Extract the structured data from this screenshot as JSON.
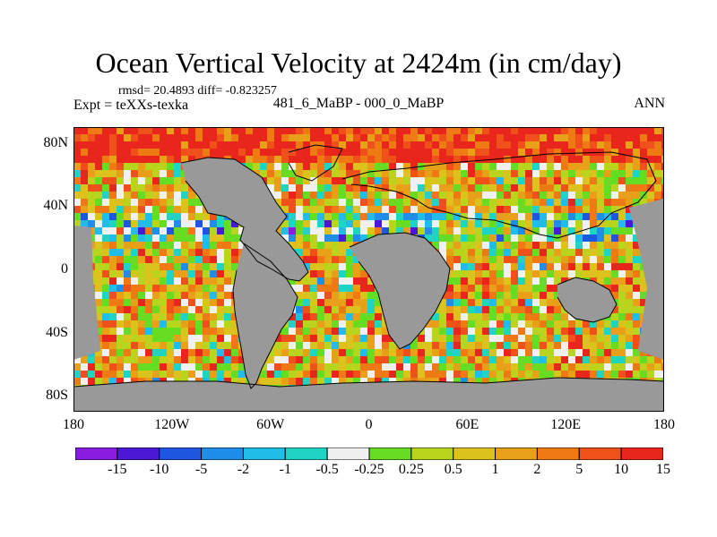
{
  "title": "Ocean Vertical Velocity at 2424m (in cm/day)",
  "stats": "rmsd= 20.4893 diff= -0.823257",
  "experiment": "Expt = teXXs-texka",
  "case": "481_6_MaBP - 000_0_MaBP",
  "season": "ANN",
  "lat_axis": {
    "ticks": [
      {
        "value": 80,
        "label": "80N"
      },
      {
        "value": 40,
        "label": "40N"
      },
      {
        "value": 0,
        "label": "0"
      },
      {
        "value": -40,
        "label": "40S"
      },
      {
        "value": -80,
        "label": "80S"
      }
    ]
  },
  "lon_axis": {
    "ticks": [
      {
        "value": -180,
        "label": "180"
      },
      {
        "value": -120,
        "label": "120W"
      },
      {
        "value": -60,
        "label": "60W"
      },
      {
        "value": 0,
        "label": "0"
      },
      {
        "value": 60,
        "label": "60E"
      },
      {
        "value": 120,
        "label": "120E"
      },
      {
        "value": 180,
        "label": "180"
      }
    ]
  },
  "colorbar": {
    "boundaries": [
      "-15",
      "-10",
      "-5",
      "-2",
      "-1",
      "-0.5",
      "-0.25",
      "0.25",
      "0.5",
      "1",
      "2",
      "5",
      "10",
      "15"
    ],
    "colors": [
      "#8a1be0",
      "#4b18d6",
      "#1f56e0",
      "#1f8ee8",
      "#22bce8",
      "#20d4c4",
      "#f0f0f0",
      "#66dd22",
      "#b8d41c",
      "#dcc21c",
      "#e8a018",
      "#ef7a14",
      "#f0501a",
      "#e8261c"
    ]
  },
  "land_color": "#999999"
}
